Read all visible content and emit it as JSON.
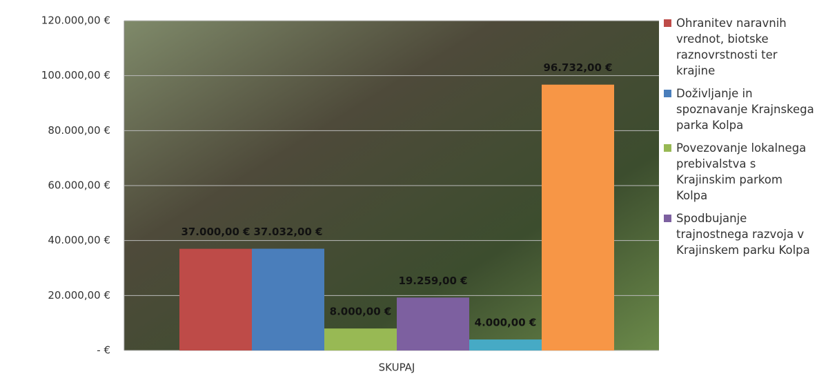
{
  "chart_data": {
    "type": "bar",
    "categories": [
      "SKUPAJ"
    ],
    "series": [
      {
        "name": "Ohranitev naravnih vrednot, biotske raznovrstnosti ter krajine",
        "color": "#be4b48",
        "values": [
          37000
        ],
        "value_labels": [
          "37.000,00 €"
        ]
      },
      {
        "name": "Doživljanje in spoznavanje Krajnskega parka Kolpa",
        "color": "#4a7ebb",
        "values": [
          37032
        ],
        "value_labels": [
          "37.032,00 €"
        ]
      },
      {
        "name": "Povezovanje lokalnega prebivalstva s Krajinskim parkom Kolpa",
        "color": "#98b954",
        "values": [
          8000
        ],
        "value_labels": [
          "8.000,00 €"
        ]
      },
      {
        "name": "Spodbujanje trajnostnega razvoja v Krajinskem parku Kolpa",
        "color": "#7d60a0",
        "values": [
          19259
        ],
        "value_labels": [
          "19.259,00 €"
        ]
      },
      {
        "color": "#46aac5",
        "values": [
          4000
        ],
        "value_labels": [
          "4.000,00 €"
        ]
      },
      {
        "color": "#f79646",
        "values": [
          96732
        ],
        "value_labels": [
          "96.732,00 €"
        ]
      }
    ],
    "ylim": [
      0,
      120000
    ],
    "yticks": [
      {
        "value": 0,
        "label": "- €"
      },
      {
        "value": 20000,
        "label": "20.000,00 €"
      },
      {
        "value": 40000,
        "label": "40.000,00 €"
      },
      {
        "value": 60000,
        "label": "60.000,00 €"
      },
      {
        "value": 80000,
        "label": "80.000,00 €"
      },
      {
        "value": 100000,
        "label": "100.000,00 €"
      },
      {
        "value": 120000,
        "label": "120.000,00 €"
      }
    ],
    "grid": true
  }
}
